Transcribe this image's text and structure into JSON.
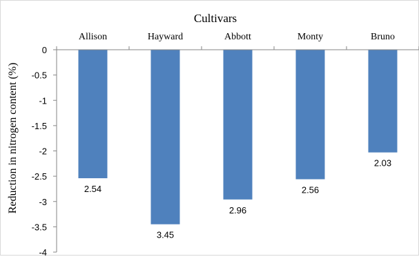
{
  "chart_data": {
    "type": "bar",
    "title": "Cultivars",
    "ylabel": "Reduction in nitrogen content (%)",
    "xlabel": "",
    "categories": [
      "Allison",
      "Hayward",
      "Abbott",
      "Monty",
      "Bruno"
    ],
    "values": [
      -2.54,
      -3.45,
      -2.96,
      -2.56,
      -2.03
    ],
    "data_labels": [
      "2.54",
      "3.45",
      "2.96",
      "2.56",
      "2.03"
    ],
    "ylim": [
      -4,
      0
    ],
    "yticks": [
      "0",
      "-0.5",
      "-1",
      "-1.5",
      "-2",
      "-2.5",
      "-3",
      "-3.5",
      "-4"
    ],
    "category_axis_position": "top",
    "legend": "none",
    "grid": false,
    "colors": {
      "bar": "#4f81bd",
      "axis": "#868686",
      "text": "#000000"
    }
  }
}
